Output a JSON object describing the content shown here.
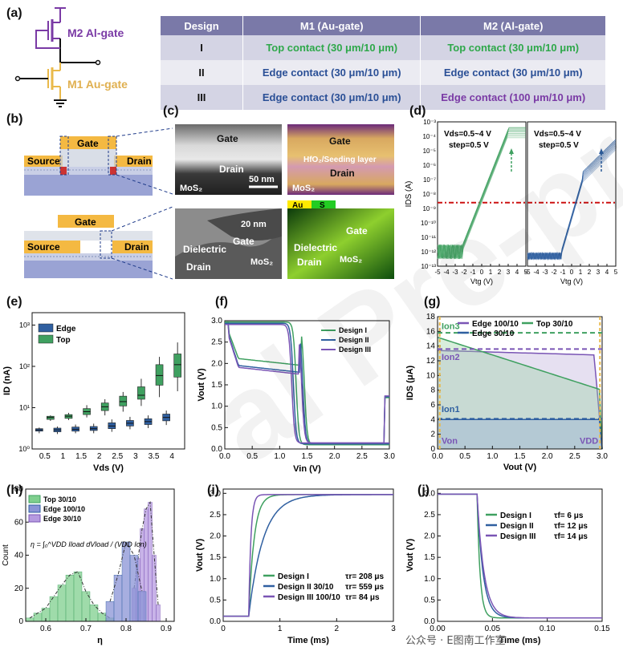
{
  "panels": {
    "a": "(a)",
    "b": "(b)",
    "c": "(c)",
    "d": "(d)",
    "e": "(e)",
    "f": "(f)",
    "g": "(g)",
    "h": "(h)",
    "i": "(i)",
    "j": "(j)"
  },
  "circuit": {
    "m2_label": "M2 Al-gate",
    "m1_label": "M1 Au-gate"
  },
  "table": {
    "headers": [
      "Design",
      "M1 (Au-gate)",
      "M2 (Al-gate)"
    ],
    "rows": [
      {
        "design": "I",
        "m1": "Top contact (30 μm/10 μm)",
        "m2": "Top contact (30 μm/10 μm)"
      },
      {
        "design": "II",
        "m1": "Edge contact (30 μm/10 μm)",
        "m2": "Edge contact (30 μm/10 μm)"
      },
      {
        "design": "III",
        "m1": "Edge contact (30 μm/10 μm)",
        "m2": "Edge contact (100 μm/10 μm)"
      }
    ]
  },
  "schematic": {
    "gate": "Gate",
    "source": "Source",
    "drain": "Drain"
  },
  "tem": {
    "top_left": {
      "gate": "Gate",
      "drain": "Drain",
      "scale": "50 nm",
      "mos2": "MoS₂"
    },
    "top_right": {
      "au": "Au",
      "s": "S",
      "gate": "Gate",
      "hfo2": "HfO₂/Seeding layer",
      "drain": "Drain",
      "mos2": "MoS₂"
    },
    "bottom_left": {
      "scale": "20 nm",
      "gate": "Gate",
      "dielectric": "Dielectric",
      "drain": "Drain",
      "mos2": "MoS₂"
    },
    "bottom_right": {
      "au": "Au",
      "s": "S",
      "gate": "Gate",
      "dielectric": "Dielectric",
      "drain": "Drain",
      "mos2": "MoS₂"
    }
  },
  "watermark": "al Pre-proofs",
  "credit": "公众号 · E图南工作室",
  "colors": {
    "top": "#3fa060",
    "edge": "#2f5fa0",
    "edge100": "#7a55b5",
    "red_dash": "#cc1111",
    "gold": "#e9b94a"
  },
  "chart_data": [
    {
      "id": "d",
      "type": "line",
      "annotations": [
        "Vds=0.5~4 V",
        "step=0.5 V"
      ],
      "xlabel": "Vtg (V)",
      "ylabel": "IDS (A)",
      "x_ticks": [
        "-5",
        "-4",
        "-3",
        "-2",
        "-1",
        "0",
        "1",
        "2",
        "3",
        "4",
        "5"
      ],
      "y_ticks": [
        "10⁻¹³",
        "10⁻¹²",
        "10⁻¹¹",
        "10⁻¹⁰",
        "10⁻⁹",
        "10⁻⁸",
        "10⁻⁷",
        "10⁻⁶",
        "10⁻⁵",
        "10⁻⁴",
        "10⁻³"
      ],
      "xlim": [
        -5,
        5
      ],
      "ylim_exp": [
        -13,
        -3
      ],
      "threshold_line_exp": -8.6
    },
    {
      "id": "e",
      "type": "box",
      "xlabel": "Vds (V)",
      "ylabel": "ID (nA)",
      "categories": [
        "0.5",
        "1",
        "1.5",
        "2",
        "2.5",
        "3",
        "3.5",
        "4"
      ],
      "series": [
        {
          "name": "Edge",
          "median": [
            2.9,
            2.9,
            3.0,
            3.1,
            3.6,
            4.2,
            4.6,
            5.8
          ],
          "q1": [
            2.7,
            2.6,
            2.7,
            2.8,
            3.1,
            3.6,
            3.9,
            4.8
          ],
          "q3": [
            3.1,
            3.2,
            3.4,
            3.5,
            4.3,
            4.9,
            5.4,
            7.0
          ],
          "min": [
            2.4,
            2.3,
            2.4,
            2.4,
            2.6,
            3.0,
            3.2,
            3.8
          ],
          "max": [
            3.3,
            3.5,
            3.9,
            4.1,
            5.2,
            6.0,
            6.5,
            8.5
          ]
        },
        {
          "name": "Top",
          "median": [
            5.8,
            6.2,
            8.0,
            10.5,
            14.0,
            20.0,
            60.0,
            110.0
          ],
          "q1": [
            5.2,
            5.5,
            6.8,
            8.5,
            11.0,
            16.0,
            35.0,
            55.0
          ],
          "q3": [
            6.2,
            6.8,
            9.5,
            13.0,
            19.0,
            32.0,
            110.0,
            200.0
          ],
          "min": [
            4.8,
            5.0,
            5.8,
            6.5,
            8.0,
            11.0,
            18.0,
            25.0
          ],
          "max": [
            6.5,
            7.5,
            11.5,
            16.0,
            24.0,
            50.0,
            170.0,
            380.0
          ]
        }
      ],
      "x_ticks": [
        "0.5",
        "1",
        "1.5",
        "2",
        "2.5",
        "3",
        "3.5",
        "4"
      ],
      "y_ticks": [
        "10⁰",
        "10¹",
        "10²",
        "10³"
      ],
      "ylim_exp": [
        0,
        3.3
      ]
    },
    {
      "id": "f",
      "type": "line",
      "xlabel": "Vin (V)",
      "ylabel": "Vout (V)",
      "x_ticks": [
        "0.0",
        "0.5",
        "1.0",
        "1.5",
        "2.0",
        "2.5",
        "3.0"
      ],
      "y_ticks": [
        "0.0",
        "0.5",
        "1.0",
        "1.5",
        "2.0",
        "2.5",
        "3.0"
      ],
      "xlim": [
        0,
        3
      ],
      "ylim": [
        0,
        3
      ],
      "series": [
        {
          "name": "Design I",
          "fwd_vm": 1.45,
          "rev_vm": 1.3,
          "mid": 1.6
        },
        {
          "name": "Design II",
          "fwd_vm": 1.42,
          "rev_vm": 1.25,
          "mid": 1.35
        },
        {
          "name": "Design III",
          "fwd_vm": 1.4,
          "rev_vm": 1.22,
          "mid": 1.3
        }
      ]
    },
    {
      "id": "g",
      "type": "area",
      "xlabel": "Vout (V)",
      "ylabel": "IDS (μA)",
      "x_ticks": [
        "0.0",
        "0.5",
        "1.0",
        "1.5",
        "2.0",
        "2.5",
        "3.0"
      ],
      "y_ticks": [
        "0",
        "2",
        "4",
        "6",
        "8",
        "10",
        "12",
        "14",
        "16",
        "18"
      ],
      "xlim": [
        0,
        3
      ],
      "ylim": [
        0,
        18
      ],
      "series": [
        {
          "name": "Edge 100/10",
          "ion": 13.6
        },
        {
          "name": "Top 30/10",
          "ion": 15.8
        },
        {
          "name": "Edge 30/10",
          "ion": 4.1
        }
      ],
      "labels": {
        "ion3": "Ion3",
        "ion2": "Ion2",
        "ion1": "Ion1",
        "von": "Von",
        "vdd": "VDD"
      }
    },
    {
      "id": "h",
      "type": "histogram",
      "xlabel": "η",
      "ylabel": "Count",
      "x_ticks": [
        "0.6",
        "0.7",
        "0.8",
        "0.9"
      ],
      "y_ticks": [
        "0",
        "20",
        "40",
        "60",
        "80"
      ],
      "xlim": [
        0.55,
        0.92
      ],
      "ylim": [
        0,
        80
      ],
      "equation": "η = ∫₀^VDD Iload dVload / (VDD Ion)",
      "series": [
        {
          "name": "Top 30/10",
          "bins": [
            0.56,
            0.58,
            0.6,
            0.62,
            0.64,
            0.66,
            0.68,
            0.7,
            0.72,
            0.74,
            0.76
          ],
          "counts": [
            2,
            5,
            8,
            15,
            22,
            28,
            30,
            18,
            10,
            5,
            2
          ]
        },
        {
          "name": "Edge 100/10",
          "bins": [
            0.76,
            0.78,
            0.8,
            0.82,
            0.84
          ],
          "counts": [
            12,
            28,
            48,
            40,
            18
          ]
        },
        {
          "name": "Edge 30/10",
          "bins": [
            0.82,
            0.83,
            0.84,
            0.85,
            0.86,
            0.87,
            0.88
          ],
          "counts": [
            20,
            38,
            56,
            68,
            72,
            40,
            10
          ]
        }
      ]
    },
    {
      "id": "i",
      "type": "line",
      "xlabel": "Time (ms)",
      "ylabel": "Vout (V)",
      "x_ticks": [
        "0",
        "1",
        "2",
        "3"
      ],
      "y_ticks": [
        "0.0",
        "0.5",
        "1.0",
        "1.5",
        "2.0",
        "2.5",
        "3.0"
      ],
      "xlim": [
        0,
        3
      ],
      "ylim": [
        0,
        3.1
      ],
      "series": [
        {
          "name": "Design I",
          "rise_time": "τr= 208 μs"
        },
        {
          "name": "Design II 30/10",
          "rise_time": "τr= 559 μs"
        },
        {
          "name": "Design III 100/10",
          "rise_time": "τr= 84 μs"
        }
      ]
    },
    {
      "id": "j",
      "type": "line",
      "xlabel": "Time (ms)",
      "ylabel": "Vout (V)",
      "x_ticks": [
        "0.00",
        "0.05",
        "0.10",
        "0.15"
      ],
      "y_ticks": [
        "0.0",
        "0.5",
        "1.0",
        "1.5",
        "2.0",
        "2.5",
        "3.0"
      ],
      "xlim": [
        0,
        0.15
      ],
      "ylim": [
        0,
        3.1
      ],
      "series": [
        {
          "name": "Design I",
          "fall_time": "τf= 6 μs"
        },
        {
          "name": "Design II",
          "fall_time": "τf= 12 μs"
        },
        {
          "name": "Design III",
          "fall_time": "τf= 14 μs"
        }
      ]
    }
  ]
}
